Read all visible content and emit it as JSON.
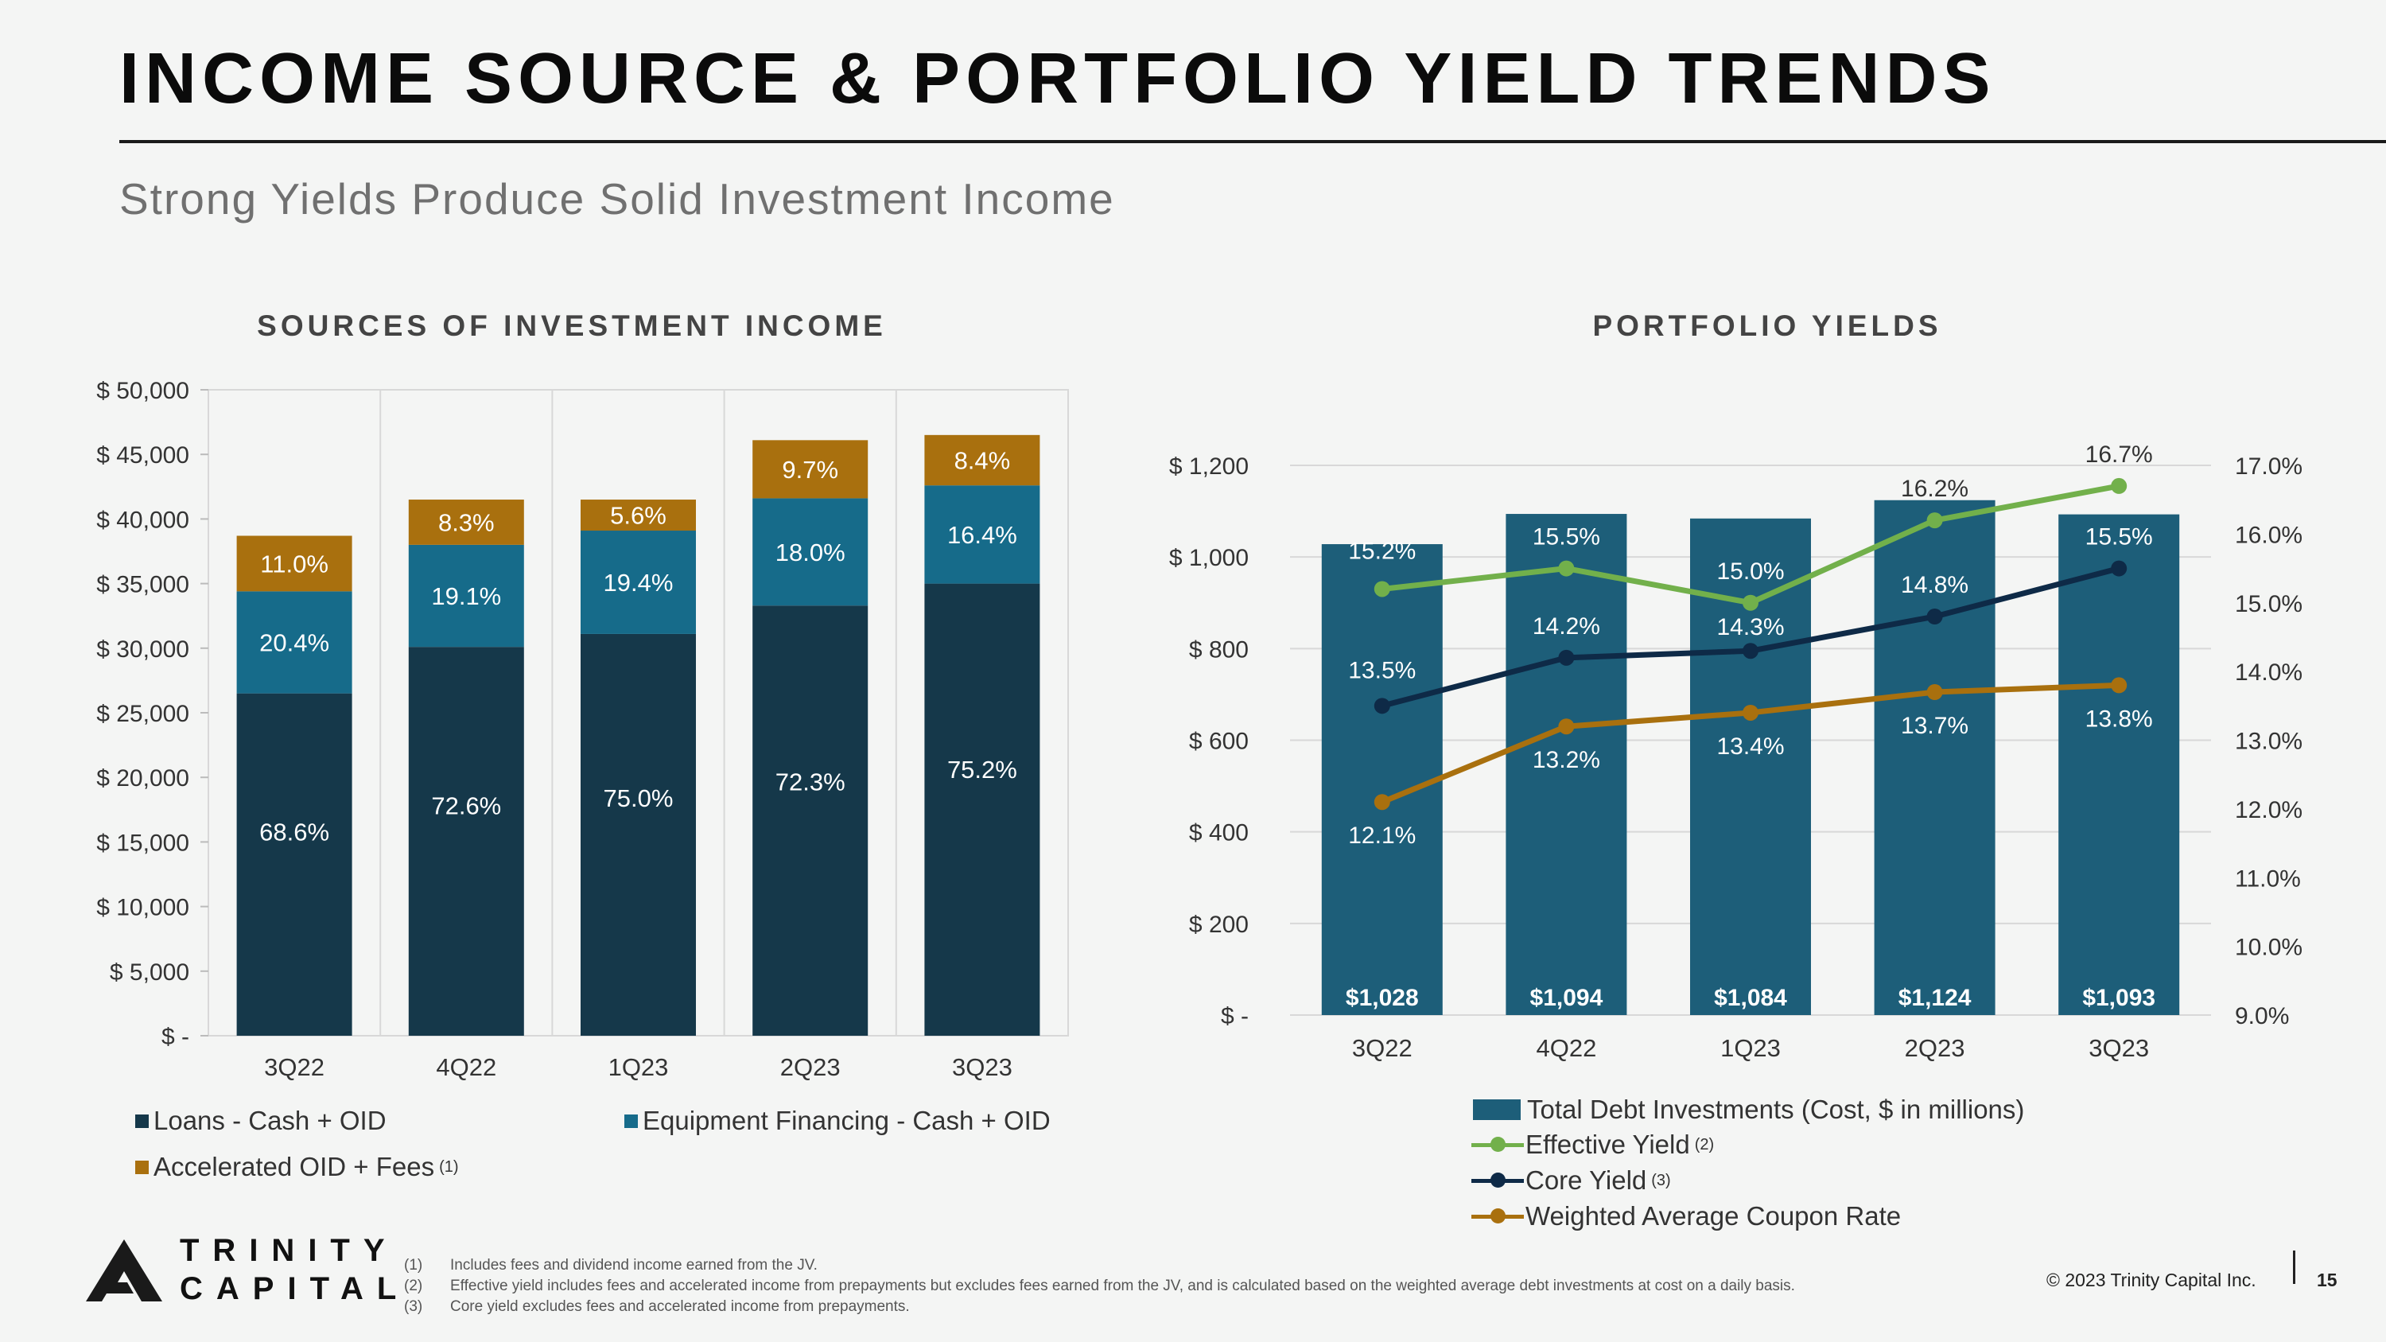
{
  "title": "INCOME SOURCE & PORTFOLIO YIELD TRENDS",
  "subtitle": "Strong Yields Produce Solid Investment Income",
  "colors": {
    "loans": "#15384a",
    "equipment": "#166b8a",
    "fees": "#a9700e",
    "debt_bar": "#1d5e79",
    "effective": "#72b04b",
    "core": "#0e2a47",
    "coupon": "#a9700e"
  },
  "chart_data": [
    {
      "type": "bar",
      "stacked": true,
      "title": "SOURCES OF INVESTMENT INCOME",
      "categories": [
        "3Q22",
        "4Q22",
        "1Q23",
        "2Q23",
        "3Q23"
      ],
      "y_tick_labels": [
        "$ -",
        "$ 5,000",
        "$ 10,000",
        "$ 15,000",
        "$ 20,000",
        "$ 25,000",
        "$ 30,000",
        "$ 35,000",
        "$ 40,000",
        "$ 45,000",
        "$ 50,000"
      ],
      "ylim": [
        0,
        50000
      ],
      "series": [
        {
          "name": "Loans - Cash + OID",
          "values": [
            26500,
            30100,
            31100,
            33300,
            35000
          ],
          "labels": [
            "68.6%",
            "72.6%",
            "75.0%",
            "72.3%",
            "75.2%"
          ]
        },
        {
          "name": "Equipment Financing - Cash + OID",
          "values": [
            7900,
            7900,
            8000,
            8300,
            7600
          ],
          "labels": [
            "20.4%",
            "19.1%",
            "19.4%",
            "18.0%",
            "16.4%"
          ]
        },
        {
          "name": "Accelerated OID + Fees",
          "footnote": "(1)",
          "values": [
            4300,
            3500,
            2400,
            4500,
            3900
          ],
          "labels": [
            "11.0%",
            "8.3%",
            "5.6%",
            "9.7%",
            "8.4%"
          ]
        }
      ]
    },
    {
      "type": "bar+line",
      "title": "PORTFOLIO YIELDS",
      "categories": [
        "3Q22",
        "4Q22",
        "1Q23",
        "2Q23",
        "3Q23"
      ],
      "left_axis": {
        "ylim": [
          0,
          1200
        ],
        "tick_labels": [
          "$ -",
          "$ 200",
          "$ 400",
          "$ 600",
          "$ 800",
          "$ 1,000",
          "$ 1,200"
        ]
      },
      "right_axis": {
        "ylim": [
          9.0,
          17.0
        ],
        "tick_labels": [
          "9.0%",
          "10.0%",
          "11.0%",
          "12.0%",
          "13.0%",
          "14.0%",
          "15.0%",
          "16.0%",
          "17.0%"
        ]
      },
      "bars": {
        "name": "Total Debt Investments (Cost, $ in millions)",
        "values": [
          1028,
          1094,
          1084,
          1124,
          1093
        ],
        "labels": [
          "$1,028",
          "$1,094",
          "$1,084",
          "$1,124",
          "$1,093"
        ]
      },
      "lines": [
        {
          "name": "Effective Yield",
          "footnote": "(2)",
          "values": [
            15.2,
            15.5,
            15.0,
            16.2,
            16.7
          ],
          "labels": [
            "15.2%",
            "15.5%",
            "15.0%",
            "16.2%",
            "16.7%"
          ]
        },
        {
          "name": "Core Yield",
          "footnote": "(3)",
          "values": [
            13.5,
            14.2,
            14.3,
            14.8,
            15.5
          ],
          "labels": [
            "13.5%",
            "14.2%",
            "14.3%",
            "14.8%",
            "15.5%"
          ]
        },
        {
          "name": "Weighted Average Coupon Rate",
          "values": [
            12.1,
            13.2,
            13.4,
            13.7,
            13.8
          ],
          "labels": [
            "12.1%",
            "13.2%",
            "13.4%",
            "13.7%",
            "13.8%"
          ]
        }
      ]
    }
  ],
  "logo": {
    "line1": "TRINITY",
    "line2": "CAPITAL"
  },
  "footnotes": [
    {
      "num": "(1)",
      "text": "Includes fees and dividend income earned from the JV."
    },
    {
      "num": "(2)",
      "text": "Effective yield includes fees and accelerated income from prepayments but excludes fees earned from the JV, and is calculated based on the weighted average debt investments at cost on a daily basis."
    },
    {
      "num": "(3)",
      "text": "Core yield excludes fees and accelerated income from prepayments."
    }
  ],
  "copyright": "© 2023 Trinity Capital Inc.",
  "page_number": "15"
}
